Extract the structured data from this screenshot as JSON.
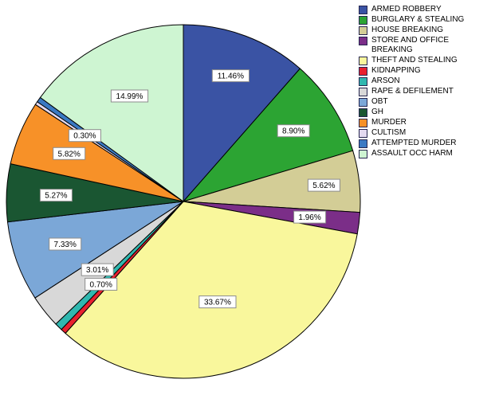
{
  "chart_data": {
    "type": "pie",
    "title": "",
    "start_angle_deg": 0,
    "direction": "clockwise",
    "legend_position": "top-right",
    "background_color": "#ffffff",
    "slice_border_color": "#000000",
    "label_box_fill": "#ffffff",
    "label_box_border_color": "#8c8c8c",
    "slices": [
      {
        "name": "ARMED ROBBERY",
        "value": 11.46,
        "label": "11.46%",
        "color": "#3A53A4",
        "label_frac": 0.76
      },
      {
        "name": "BURGLARY & STEALING",
        "value": 8.9,
        "label": "8.90%",
        "color": "#2CA433",
        "label_frac": 0.74
      },
      {
        "name": "HOUSE BREAKING",
        "value": 5.62,
        "label": "5.62%",
        "color": "#D3CD96",
        "label_frac": 0.8
      },
      {
        "name": "STORE AND OFFICE BREAKING",
        "value": 1.96,
        "label": "1.96%",
        "color": "#7B2E88",
        "label_frac": 0.72
      },
      {
        "name": "THEFT AND STEALING",
        "value": 33.67,
        "label": "33.67%",
        "color": "#F9F79C",
        "label_frac": 0.6
      },
      {
        "name": "KIDNAPPING",
        "value": 0.5,
        "label": null,
        "color": "#E8212E",
        "label_frac": null
      },
      {
        "name": "ARSON",
        "value": 0.7,
        "label": "0.70%",
        "color": "#30B7AF",
        "label_frac": 0.66
      },
      {
        "name": "RAPE & DEFILEMENT",
        "value": 3.01,
        "label": "3.01%",
        "color": "#D8D8D8",
        "label_frac": 0.62
      },
      {
        "name": "OBT",
        "value": 7.33,
        "label": "7.33%",
        "color": "#7BA7D7",
        "label_frac": 0.71
      },
      {
        "name": "GH",
        "value": 5.27,
        "label": "5.27%",
        "color": "#1A5632",
        "label_frac": 0.72
      },
      {
        "name": "MURDER",
        "value": 5.82,
        "label": "5.82%",
        "color": "#F79128",
        "label_frac": 0.7
      },
      {
        "name": "CULTISM",
        "value": 0.3,
        "label": "0.30%",
        "color": "#E3D9F0",
        "label_frac": 0.67
      },
      {
        "name": "ATTEMPTED MURDER",
        "value": 0.47,
        "label": null,
        "color": "#3A79C3",
        "label_frac": null
      },
      {
        "name": "ASSAULT OCC HARM",
        "value": 14.99,
        "label": "14.99%",
        "color": "#CEF5D2",
        "label_frac": 0.67
      }
    ]
  }
}
